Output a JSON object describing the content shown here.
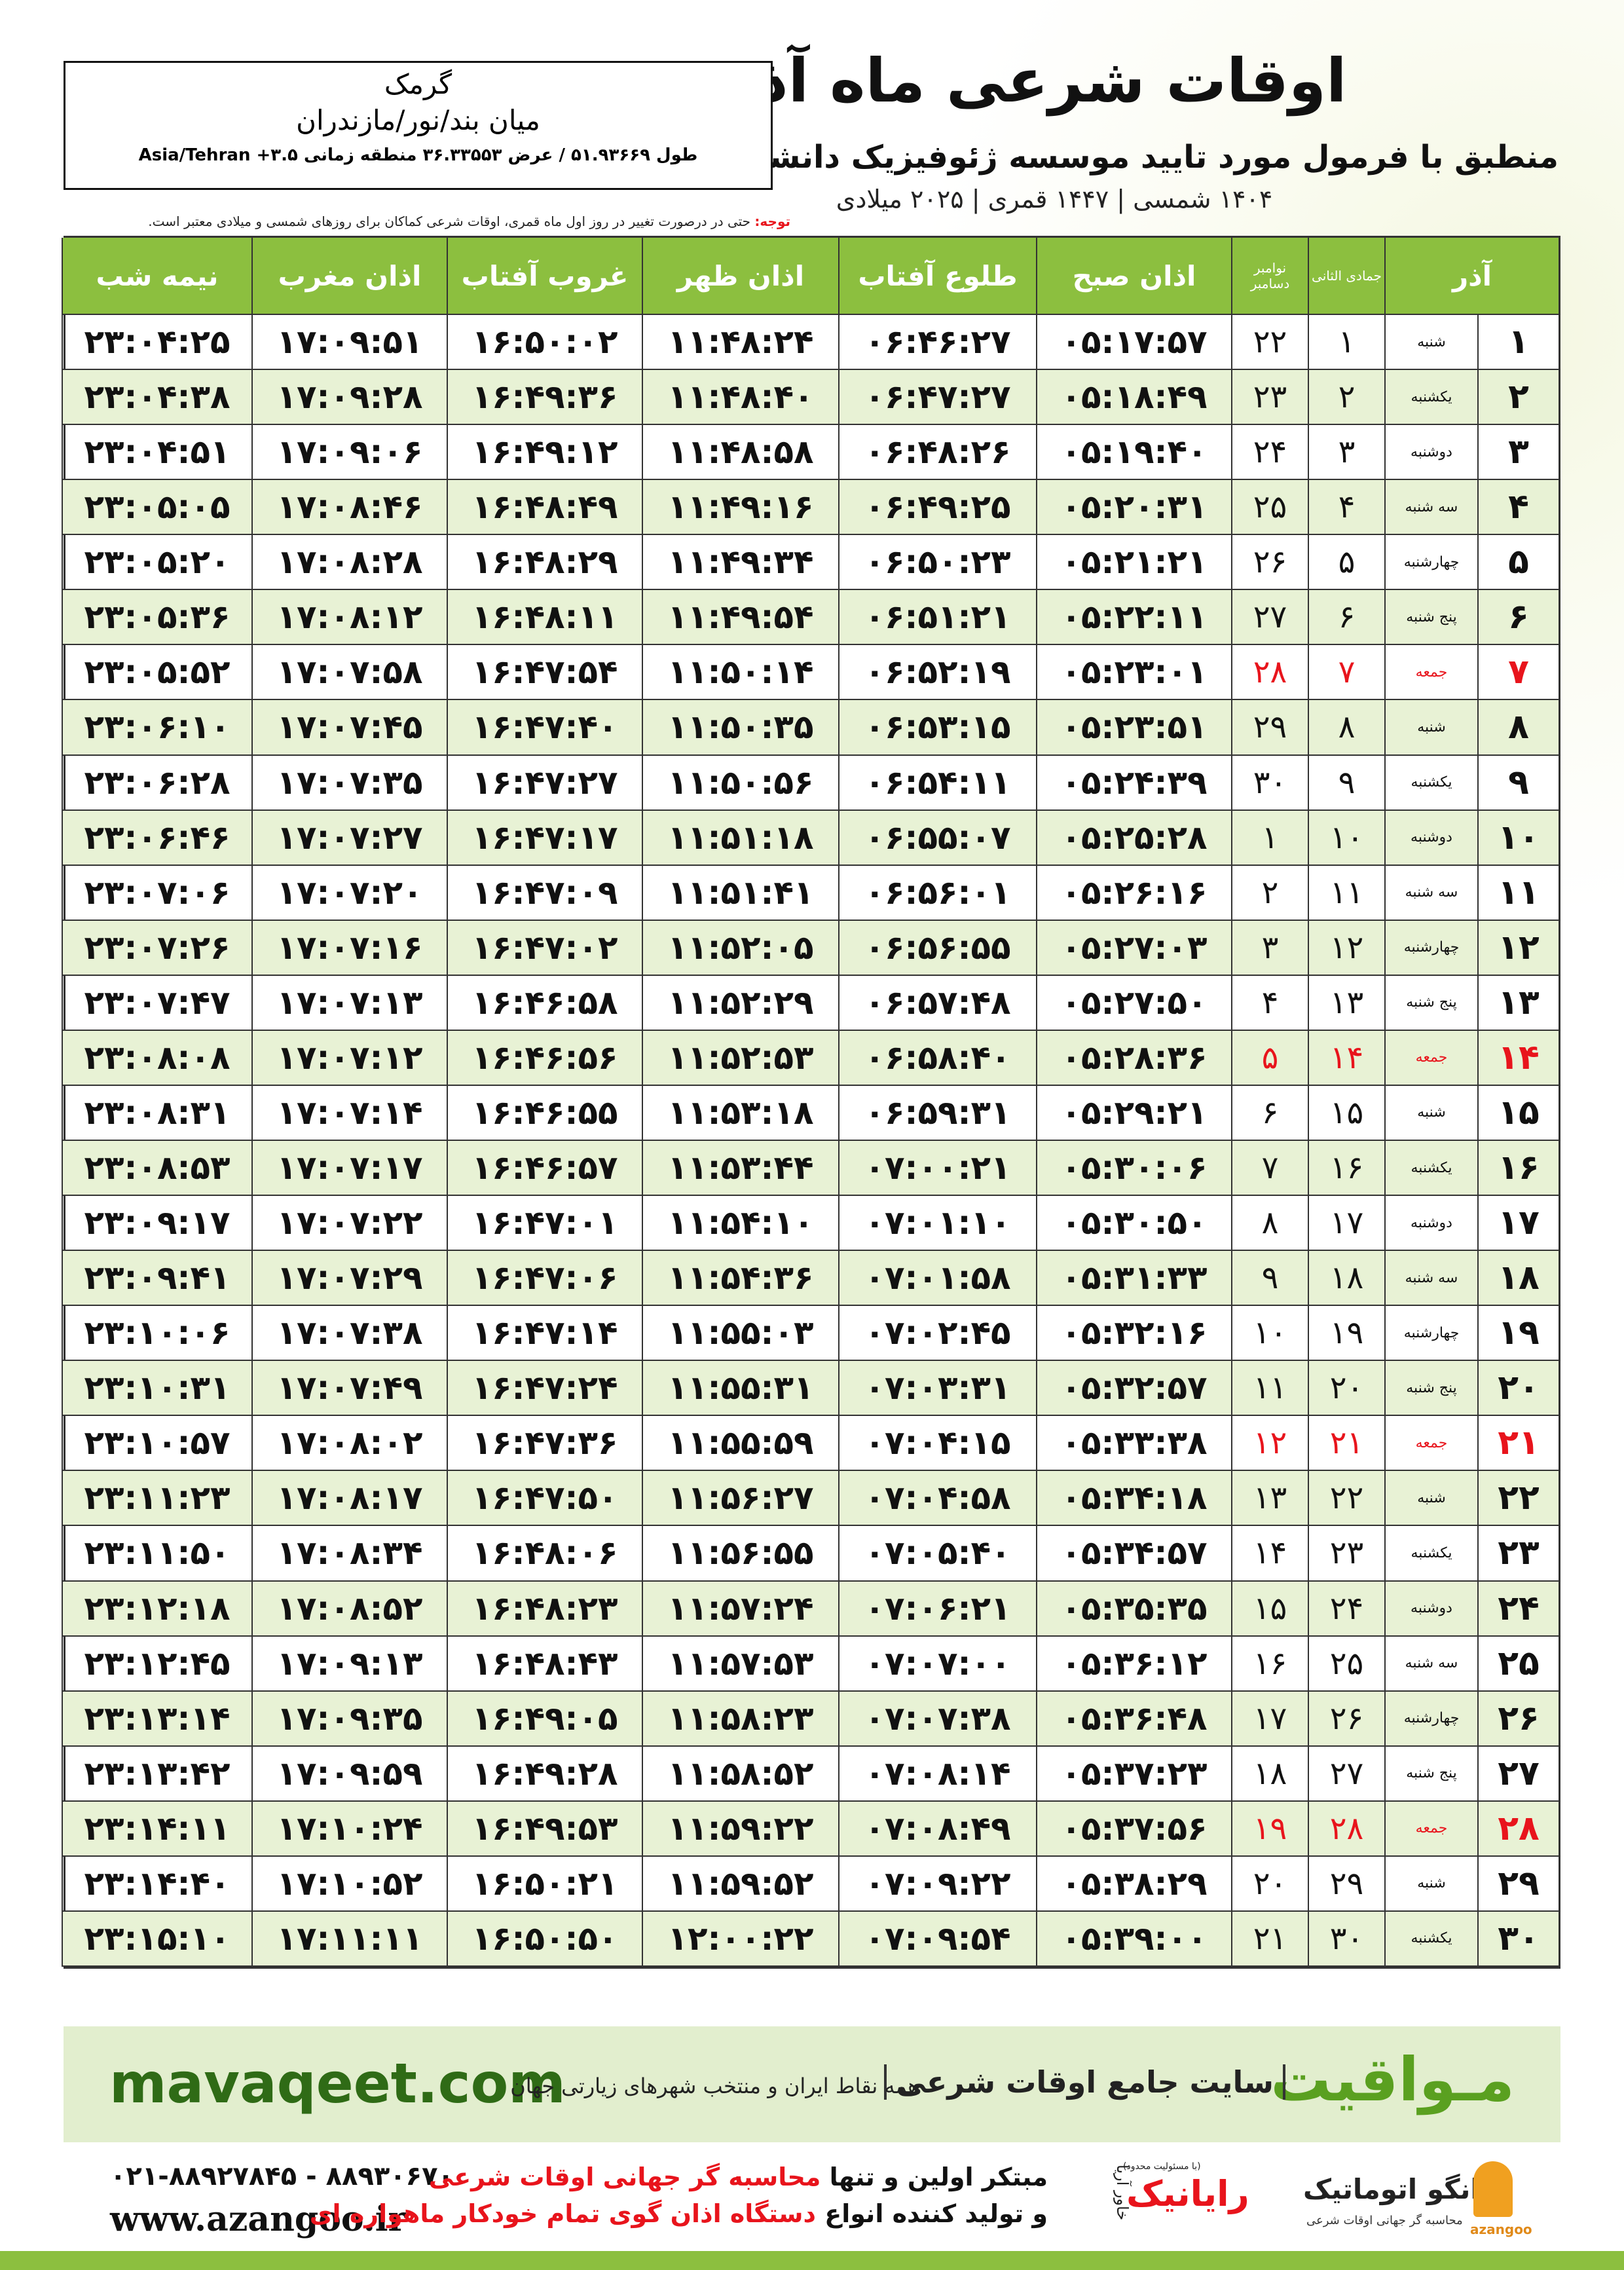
{
  "header": {
    "title": "اوقات شرعی ماه آذر",
    "subtitle": "منطبق با فرمول مورد تایید موسسه ژئوفیزیک دانشگاه تهران",
    "dates": "۱۴۰۴ شمسی | ۱۴۴۷ قمری | ۲۰۲۵ میلادی"
  },
  "location": {
    "city": "گرمک",
    "region": "میان بند/نور/مازندران",
    "coords": "طول ۵۱.۹۳۶۶۹ / عرض ۳۶.۳۳۵۵۳ منطقه زمانی ۳.۵+ Asia/Tehran"
  },
  "note": {
    "label": "توجه:",
    "text": "حتی در درصورت تغییر در روز اول ماه قمری، اوقات شرعی کماکان برای روزهای شمسی و میلادی معتبر است."
  },
  "table": {
    "header": {
      "month": "آذر",
      "qamari": "جمادی الثانی",
      "gregorian": [
        "نوامبر",
        "دسامبر"
      ],
      "times": [
        "اذان صبح",
        "طلوع آفتاب",
        "اذان ظهر",
        "غروب آفتاب",
        "اذان مغرب",
        "نیمه شب"
      ]
    },
    "rows": [
      {
        "cells": [
          "۱",
          "شنبه",
          "۱",
          "۲۲",
          "۰۵:۱۷:۵۷",
          "۰۶:۴۶:۲۷",
          "۱۱:۴۸:۲۴",
          "۱۶:۵۰:۰۲",
          "۱۷:۰۹:۵۱",
          "۲۳:۰۴:۲۵"
        ]
      },
      {
        "cells": [
          "۲",
          "یکشنبه",
          "۲",
          "۲۳",
          "۰۵:۱۸:۴۹",
          "۰۶:۴۷:۲۷",
          "۱۱:۴۸:۴۰",
          "۱۶:۴۹:۳۶",
          "۱۷:۰۹:۲۸",
          "۲۳:۰۴:۳۸"
        ]
      },
      {
        "cells": [
          "۳",
          "دوشنبه",
          "۳",
          "۲۴",
          "۰۵:۱۹:۴۰",
          "۰۶:۴۸:۲۶",
          "۱۱:۴۸:۵۸",
          "۱۶:۴۹:۱۲",
          "۱۷:۰۹:۰۶",
          "۲۳:۰۴:۵۱"
        ]
      },
      {
        "cells": [
          "۴",
          "سه شنبه",
          "۴",
          "۲۵",
          "۰۵:۲۰:۳۱",
          "۰۶:۴۹:۲۵",
          "۱۱:۴۹:۱۶",
          "۱۶:۴۸:۴۹",
          "۱۷:۰۸:۴۶",
          "۲۳:۰۵:۰۵"
        ]
      },
      {
        "cells": [
          "۵",
          "چهارشنبه",
          "۵",
          "۲۶",
          "۰۵:۲۱:۲۱",
          "۰۶:۵۰:۲۳",
          "۱۱:۴۹:۳۴",
          "۱۶:۴۸:۲۹",
          "۱۷:۰۸:۲۸",
          "۲۳:۰۵:۲۰"
        ]
      },
      {
        "cells": [
          "۶",
          "پنج شنبه",
          "۶",
          "۲۷",
          "۰۵:۲۲:۱۱",
          "۰۶:۵۱:۲۱",
          "۱۱:۴۹:۵۴",
          "۱۶:۴۸:۱۱",
          "۱۷:۰۸:۱۲",
          "۲۳:۰۵:۳۶"
        ]
      },
      {
        "cells": [
          "۷",
          "جمعه",
          "۷",
          "۲۸",
          "۰۵:۲۳:۰۱",
          "۰۶:۵۲:۱۹",
          "۱۱:۵۰:۱۴",
          "۱۶:۴۷:۵۴",
          "۱۷:۰۷:۵۸",
          "۲۳:۰۵:۵۲"
        ],
        "color": "#e8141c"
      },
      {
        "cells": [
          "۸",
          "شنبه",
          "۸",
          "۲۹",
          "۰۵:۲۳:۵۱",
          "۰۶:۵۳:۱۵",
          "۱۱:۵۰:۳۵",
          "۱۶:۴۷:۴۰",
          "۱۷:۰۷:۴۵",
          "۲۳:۰۶:۱۰"
        ]
      },
      {
        "cells": [
          "۹",
          "یکشنبه",
          "۹",
          "۳۰",
          "۰۵:۲۴:۳۹",
          "۰۶:۵۴:۱۱",
          "۱۱:۵۰:۵۶",
          "۱۶:۴۷:۲۷",
          "۱۷:۰۷:۳۵",
          "۲۳:۰۶:۲۸"
        ]
      },
      {
        "cells": [
          "۱۰",
          "دوشنبه",
          "۱۰",
          "۱",
          "۰۵:۲۵:۲۸",
          "۰۶:۵۵:۰۷",
          "۱۱:۵۱:۱۸",
          "۱۶:۴۷:۱۷",
          "۱۷:۰۷:۲۷",
          "۲۳:۰۶:۴۶"
        ]
      },
      {
        "cells": [
          "۱۱",
          "سه شنبه",
          "۱۱",
          "۲",
          "۰۵:۲۶:۱۶",
          "۰۶:۵۶:۰۱",
          "۱۱:۵۱:۴۱",
          "۱۶:۴۷:۰۹",
          "۱۷:۰۷:۲۰",
          "۲۳:۰۷:۰۶"
        ]
      },
      {
        "cells": [
          "۱۲",
          "چهارشنبه",
          "۱۲",
          "۳",
          "۰۵:۲۷:۰۳",
          "۰۶:۵۶:۵۵",
          "۱۱:۵۲:۰۵",
          "۱۶:۴۷:۰۲",
          "۱۷:۰۷:۱۶",
          "۲۳:۰۷:۲۶"
        ]
      },
      {
        "cells": [
          "۱۳",
          "پنج شنبه",
          "۱۳",
          "۴",
          "۰۵:۲۷:۵۰",
          "۰۶:۵۷:۴۸",
          "۱۱:۵۲:۲۹",
          "۱۶:۴۶:۵۸",
          "۱۷:۰۷:۱۳",
          "۲۳:۰۷:۴۷"
        ]
      },
      {
        "cells": [
          "۱۴",
          "جمعه",
          "۱۴",
          "۵",
          "۰۵:۲۸:۳۶",
          "۰۶:۵۸:۴۰",
          "۱۱:۵۲:۵۳",
          "۱۶:۴۶:۵۶",
          "۱۷:۰۷:۱۲",
          "۲۳:۰۸:۰۸"
        ],
        "color": "#e8141c"
      },
      {
        "cells": [
          "۱۵",
          "شنبه",
          "۱۵",
          "۶",
          "۰۵:۲۹:۲۱",
          "۰۶:۵۹:۳۱",
          "۱۱:۵۳:۱۸",
          "۱۶:۴۶:۵۵",
          "۱۷:۰۷:۱۴",
          "۲۳:۰۸:۳۱"
        ]
      },
      {
        "cells": [
          "۱۶",
          "یکشنبه",
          "۱۶",
          "۷",
          "۰۵:۳۰:۰۶",
          "۰۷:۰۰:۲۱",
          "۱۱:۵۳:۴۴",
          "۱۶:۴۶:۵۷",
          "۱۷:۰۷:۱۷",
          "۲۳:۰۸:۵۳"
        ]
      },
      {
        "cells": [
          "۱۷",
          "دوشنبه",
          "۱۷",
          "۸",
          "۰۵:۳۰:۵۰",
          "۰۷:۰۱:۱۰",
          "۱۱:۵۴:۱۰",
          "۱۶:۴۷:۰۱",
          "۱۷:۰۷:۲۲",
          "۲۳:۰۹:۱۷"
        ]
      },
      {
        "cells": [
          "۱۸",
          "سه شنبه",
          "۱۸",
          "۹",
          "۰۵:۳۱:۳۳",
          "۰۷:۰۱:۵۸",
          "۱۱:۵۴:۳۶",
          "۱۶:۴۷:۰۶",
          "۱۷:۰۷:۲۹",
          "۲۳:۰۹:۴۱"
        ]
      },
      {
        "cells": [
          "۱۹",
          "چهارشنبه",
          "۱۹",
          "۱۰",
          "۰۵:۳۲:۱۶",
          "۰۷:۰۲:۴۵",
          "۱۱:۵۵:۰۳",
          "۱۶:۴۷:۱۴",
          "۱۷:۰۷:۳۸",
          "۲۳:۱۰:۰۶"
        ]
      },
      {
        "cells": [
          "۲۰",
          "پنج شنبه",
          "۲۰",
          "۱۱",
          "۰۵:۳۲:۵۷",
          "۰۷:۰۳:۳۱",
          "۱۱:۵۵:۳۱",
          "۱۶:۴۷:۲۴",
          "۱۷:۰۷:۴۹",
          "۲۳:۱۰:۳۱"
        ]
      },
      {
        "cells": [
          "۲۱",
          "جمعه",
          "۲۱",
          "۱۲",
          "۰۵:۳۳:۳۸",
          "۰۷:۰۴:۱۵",
          "۱۱:۵۵:۵۹",
          "۱۶:۴۷:۳۶",
          "۱۷:۰۸:۰۲",
          "۲۳:۱۰:۵۷"
        ],
        "color": "#e8141c"
      },
      {
        "cells": [
          "۲۲",
          "شنبه",
          "۲۲",
          "۱۳",
          "۰۵:۳۴:۱۸",
          "۰۷:۰۴:۵۸",
          "۱۱:۵۶:۲۷",
          "۱۶:۴۷:۵۰",
          "۱۷:۰۸:۱۷",
          "۲۳:۱۱:۲۳"
        ]
      },
      {
        "cells": [
          "۲۳",
          "یکشنبه",
          "۲۳",
          "۱۴",
          "۰۵:۳۴:۵۷",
          "۰۷:۰۵:۴۰",
          "۱۱:۵۶:۵۵",
          "۱۶:۴۸:۰۶",
          "۱۷:۰۸:۳۴",
          "۲۳:۱۱:۵۰"
        ]
      },
      {
        "cells": [
          "۲۴",
          "دوشنبه",
          "۲۴",
          "۱۵",
          "۰۵:۳۵:۳۵",
          "۰۷:۰۶:۲۱",
          "۱۱:۵۷:۲۴",
          "۱۶:۴۸:۲۳",
          "۱۷:۰۸:۵۲",
          "۲۳:۱۲:۱۸"
        ]
      },
      {
        "cells": [
          "۲۵",
          "سه شنبه",
          "۲۵",
          "۱۶",
          "۰۵:۳۶:۱۲",
          "۰۷:۰۷:۰۰",
          "۱۱:۵۷:۵۳",
          "۱۶:۴۸:۴۳",
          "۱۷:۰۹:۱۳",
          "۲۳:۱۲:۴۵"
        ]
      },
      {
        "cells": [
          "۲۶",
          "چهارشنبه",
          "۲۶",
          "۱۷",
          "۰۵:۳۶:۴۸",
          "۰۷:۰۷:۳۸",
          "۱۱:۵۸:۲۳",
          "۱۶:۴۹:۰۵",
          "۱۷:۰۹:۳۵",
          "۲۳:۱۳:۱۴"
        ]
      },
      {
        "cells": [
          "۲۷",
          "پنج شنبه",
          "۲۷",
          "۱۸",
          "۰۵:۳۷:۲۳",
          "۰۷:۰۸:۱۴",
          "۱۱:۵۸:۵۲",
          "۱۶:۴۹:۲۸",
          "۱۷:۰۹:۵۹",
          "۲۳:۱۳:۴۲"
        ]
      },
      {
        "cells": [
          "۲۸",
          "جمعه",
          "۲۸",
          "۱۹",
          "۰۵:۳۷:۵۶",
          "۰۷:۰۸:۴۹",
          "۱۱:۵۹:۲۲",
          "۱۶:۴۹:۵۳",
          "۱۷:۱۰:۲۴",
          "۲۳:۱۴:۱۱"
        ],
        "color": "#e8141c"
      },
      {
        "cells": [
          "۲۹",
          "شنبه",
          "۲۹",
          "۲۰",
          "۰۵:۳۸:۲۹",
          "۰۷:۰۹:۲۲",
          "۱۱:۵۹:۵۲",
          "۱۶:۵۰:۲۱",
          "۱۷:۱۰:۵۲",
          "۲۳:۱۴:۴۰"
        ]
      },
      {
        "cells": [
          "۳۰",
          "یکشنبه",
          "۳۰",
          "۲۱",
          "۰۵:۳۹:۰۰",
          "۰۷:۰۹:۵۴",
          "۱۲:۰۰:۲۲",
          "۱۶:۵۰:۵۰",
          "۱۷:۱۱:۱۱",
          "۲۳:۱۵:۱۰"
        ]
      }
    ]
  },
  "banner": {
    "site": "mavaqeet.com",
    "brand": "مـواقیت",
    "tagline": "سایت جامع اوقات شرعی",
    "scope": "همه نقاط ایران و منتخب شهرهای زیارتی جهان"
  },
  "footer": {
    "phone": "۰۲۱-۸۸۹۲۷۸۴۵ - ۸۸۹۳۰۶۷۰",
    "web": "www.azangoo.ir",
    "line1": [
      "مبتکر اولین و تنها",
      "محاسبه گر جهانی اوقات شرعی"
    ],
    "line2": [
      "و تولید کننده انواع",
      "دستگاه اذان گوی تمام خودکار ماهواره ای"
    ],
    "logo1": {
      "name": "رایانیک",
      "sub": "خاور آریا",
      "legal": "(با مسئولیت محدود)"
    },
    "logo2": {
      "name": "اذانگو اتوماتیک",
      "sub": "محاسبه گر جهانی اوقات شرعی",
      "latin": "azangoo"
    }
  }
}
